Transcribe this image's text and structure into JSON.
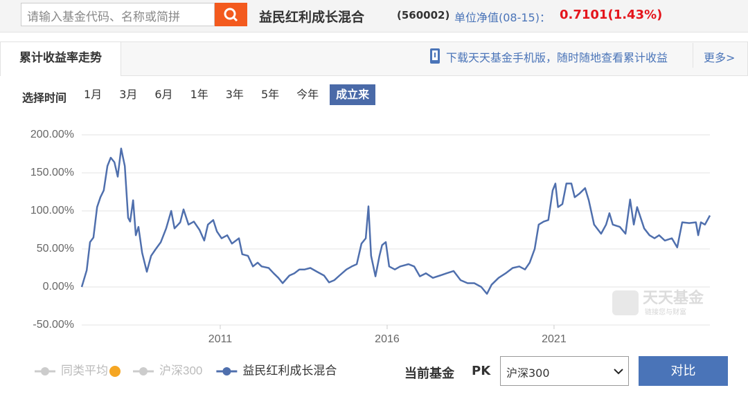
{
  "search": {
    "placeholder": "请输入基金代码、名称或简拼"
  },
  "fund": {
    "name": "益民红利成长混合",
    "code": "(560002)",
    "nav_label": "单位净值(08-15)：",
    "nav": "0.7101",
    "change": "(1.43%)"
  },
  "tabs": {
    "active": "累计收益率走势",
    "download": "下载天天基金手机版，随时随地查看累计收益",
    "more": "更多>"
  },
  "time_filter": {
    "label": "选择时间",
    "options": [
      "1月",
      "3月",
      "6月",
      "1年",
      "3年",
      "5年",
      "今年",
      "成立来"
    ],
    "active": 7
  },
  "watermark": {
    "title": "天天基金",
    "subtitle": "链接您与财富"
  },
  "chart_data": {
    "type": "line",
    "x": [
      2006.85,
      2007.0,
      2007.1,
      2007.2,
      2007.31,
      2007.41,
      2007.51,
      2007.62,
      2007.72,
      2007.83,
      2007.93,
      2008.03,
      2008.14,
      2008.24,
      2008.3,
      2008.39,
      2008.47,
      2008.55,
      2008.66,
      2008.8,
      2008.93,
      2009.07,
      2009.22,
      2009.38,
      2009.53,
      2009.63,
      2009.8,
      2009.9,
      2010.05,
      2010.21,
      2010.38,
      2010.52,
      2010.63,
      2010.79,
      2010.9,
      2011.04,
      2011.21,
      2011.35,
      2011.56,
      2011.66,
      2011.83,
      2011.98,
      2012.12,
      2012.24,
      2012.45,
      2012.6,
      2012.74,
      2012.87,
      2013.07,
      2013.22,
      2013.37,
      2013.53,
      2013.7,
      2013.9,
      2014.11,
      2014.26,
      2014.42,
      2014.57,
      2014.78,
      2014.94,
      2015.09,
      2015.23,
      2015.36,
      2015.44,
      2015.52,
      2015.65,
      2015.77,
      2015.85,
      2015.96,
      2016.06,
      2016.23,
      2016.39,
      2016.64,
      2016.81,
      2016.98,
      2017.16,
      2017.37,
      2017.58,
      2017.78,
      2017.99,
      2018.2,
      2018.41,
      2018.61,
      2018.82,
      2018.99,
      2019.13,
      2019.34,
      2019.55,
      2019.76,
      2019.96,
      2020.13,
      2020.27,
      2020.42,
      2020.54,
      2020.69,
      2020.83,
      2020.96,
      2021.04,
      2021.12,
      2021.25,
      2021.37,
      2021.52,
      2021.62,
      2021.77,
      2021.93,
      2022.04,
      2022.2,
      2022.41,
      2022.56,
      2022.66,
      2022.76,
      2022.97,
      2023.14,
      2023.28,
      2023.39,
      2023.49,
      2023.7,
      2023.86,
      2024.01,
      2024.15,
      2024.32,
      2024.53,
      2024.69,
      2024.84,
      2025.05,
      2025.25,
      2025.32,
      2025.4,
      2025.52,
      2025.67
    ],
    "series": [
      {
        "name": "益民红利成长混合",
        "color": "#4f6fad",
        "values": [
          0,
          22,
          59,
          65,
          105,
          118,
          127,
          159,
          170,
          164,
          145,
          182,
          159,
          91,
          86,
          114,
          68,
          79,
          45,
          20,
          41,
          50,
          59,
          77,
          100,
          77,
          85,
          102,
          82,
          86,
          75,
          61,
          82,
          88,
          73,
          64,
          68,
          57,
          64,
          43,
          41,
          27,
          32,
          27,
          25,
          18,
          12,
          5,
          15,
          18,
          23,
          23,
          25,
          20,
          15,
          6,
          9,
          15,
          23,
          27,
          30,
          57,
          64,
          106,
          41,
          14,
          41,
          55,
          59,
          27,
          23,
          27,
          30,
          27,
          14,
          18,
          12,
          15,
          18,
          21,
          9,
          5,
          5,
          0,
          -9,
          3,
          12,
          18,
          25,
          27,
          23,
          32,
          50,
          82,
          86,
          88,
          127,
          136,
          105,
          109,
          136,
          136,
          118,
          123,
          130,
          114,
          82,
          70,
          82,
          97,
          82,
          79,
          70,
          115,
          82,
          105,
          77,
          68,
          64,
          68,
          61,
          64,
          52,
          85,
          84,
          85,
          68,
          85,
          82,
          94
        ]
      }
    ],
    "hidden_series": [
      {
        "name": "同类平均",
        "color": "#cccccc",
        "info_icon": true
      },
      {
        "name": "沪深300",
        "color": "#cccccc"
      }
    ],
    "xlim": [
      2006.85,
      2025.67
    ],
    "xticks": [
      2011,
      2016,
      2021
    ],
    "ylim": [
      -50,
      200
    ],
    "yticks": [
      {
        "value": -50,
        "label": "-50.00%"
      },
      {
        "value": 0,
        "label": "0.00%"
      },
      {
        "value": 50,
        "label": "50.00%"
      },
      {
        "value": 100,
        "label": "100.00%"
      },
      {
        "value": 150,
        "label": "150.00%"
      },
      {
        "value": 200,
        "label": "200.00%"
      }
    ],
    "grid": true
  },
  "compare": {
    "label": "当前基金",
    "pk": "PK",
    "select": "沪深300",
    "button": "对比"
  }
}
